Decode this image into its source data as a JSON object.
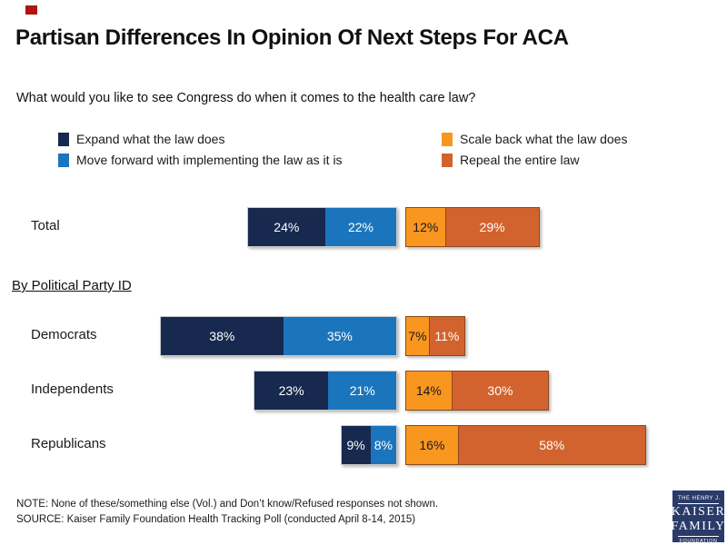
{
  "page": {
    "red_mark_color": "#b01510",
    "background": "#ffffff"
  },
  "title": "Partisan Differences In Opinion Of Next Steps For ACA",
  "subtitle": "What would you like to see Congress do when it comes to the health care law?",
  "legend": {
    "items": [
      {
        "label": "Expand what the law does",
        "color": "#17294e"
      },
      {
        "label": "Move forward with implementing the law as it is",
        "color": "#1b75bc"
      },
      {
        "label": "Scale back what the law does",
        "color": "#f89620"
      },
      {
        "label": "Repeal the entire law",
        "color": "#d2632e"
      }
    ]
  },
  "section_heading": "By Political Party ID",
  "chart_data": {
    "type": "bar",
    "variant": "horizontal-stacked-diverging",
    "unit": "%",
    "value_label_format": "{v}%",
    "categories": [
      "Total",
      "Democrats",
      "Independents",
      "Republicans"
    ],
    "series": [
      {
        "key": "expand",
        "name": "Expand what the law does",
        "color": "#17294e",
        "side": "left",
        "label_color": "white",
        "values": [
          24,
          38,
          23,
          9
        ]
      },
      {
        "key": "move_forward",
        "name": "Move forward with implementing the law as it is",
        "color": "#1b75bc",
        "side": "left",
        "label_color": "white",
        "values": [
          22,
          35,
          21,
          8
        ]
      },
      {
        "key": "scale_back",
        "name": "Scale back what the law does",
        "color": "#f89620",
        "side": "right",
        "label_color": "dark",
        "values": [
          12,
          7,
          14,
          16
        ]
      },
      {
        "key": "repeal",
        "name": "Repeal the entire law",
        "color": "#d2632e",
        "side": "right",
        "label_color": "white",
        "values": [
          29,
          11,
          30,
          58
        ]
      }
    ]
  },
  "footer": {
    "note": "NOTE: None of these/something else (Vol.) and Don’t know/Refused responses not shown.",
    "source": "SOURCE: Kaiser Family Foundation Health Tracking Poll (conducted April 8-14, 2015)"
  },
  "logo": {
    "line1": "THE HENRY J.",
    "line2": "KAISER",
    "line3": "FAMILY",
    "line4": "FOUNDATION",
    "bg_color": "#2a3b69"
  }
}
